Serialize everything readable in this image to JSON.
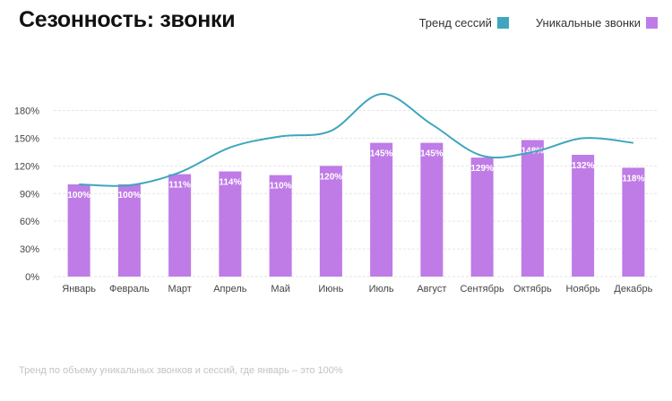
{
  "title": "Сезонность: звонки",
  "footnote": "Тренд по объему уникальных звонков и сессий, где январь – это 100%",
  "colors": {
    "bar": "#bf7be6",
    "line": "#3fa6bd",
    "grid": "#e6e6e6",
    "axis_text": "#444444",
    "label_text": "#ffffff"
  },
  "chart_data": {
    "type": "bar",
    "categories": [
      "Январь",
      "Февраль",
      "Март",
      "Апрель",
      "Май",
      "Июнь",
      "Июль",
      "Август",
      "Сентябрь",
      "Октябрь",
      "Ноябрь",
      "Декабрь"
    ],
    "series": [
      {
        "name": "Уникальные звонки",
        "type": "bar",
        "values": [
          100,
          100,
          111,
          114,
          110,
          120,
          145,
          145,
          129,
          148,
          132,
          118
        ],
        "labels": [
          "100%",
          "100%",
          "111%",
          "114%",
          "110%",
          "120%",
          "145%",
          "145%",
          "129%",
          "148%",
          "132%",
          "118%"
        ]
      },
      {
        "name": "Тренд сессий",
        "type": "line",
        "values": [
          100,
          99,
          113,
          140,
          152,
          158,
          198,
          165,
          131,
          135,
          150,
          145
        ]
      }
    ],
    "yticks": [
      "0%",
      "30%",
      "60%",
      "90%",
      "120%",
      "150%",
      "180%"
    ],
    "ylim": [
      0,
      210
    ],
    "grid": true,
    "legend_position": "top-right"
  }
}
